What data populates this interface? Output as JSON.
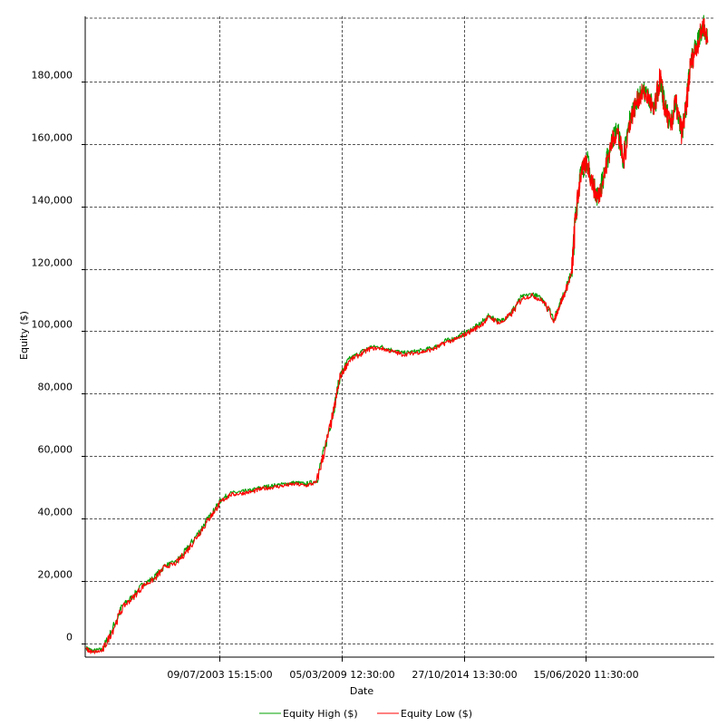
{
  "chart_data": {
    "type": "line",
    "title": "",
    "xlabel": "Date",
    "ylabel": "Equity ($)",
    "x_tick_labels": [
      "09/07/2003 15:15:00",
      "05/03/2009 12:30:00",
      "27/10/2014 13:30:00",
      "15/06/2020 11:30:00"
    ],
    "y_tick_labels": [
      "0",
      "20,000",
      "40,000",
      "60,000",
      "80,000",
      "100,000",
      "120,000",
      "140,000",
      "160,000",
      "180,000"
    ],
    "y_ticks": [
      0,
      20000,
      40000,
      60000,
      80000,
      100000,
      120000,
      140000,
      160000,
      180000
    ],
    "ylim": [
      -4500,
      201000
    ],
    "grid": true,
    "legend_position": "bottom-center",
    "x_unit": "year",
    "xlim": [
      1997.3,
      2026.4
    ],
    "x_ticks": [
      2003.52,
      2009.17,
      2014.82,
      2020.46
    ],
    "series": [
      {
        "name": "Equity High ($)",
        "color": "#00a000",
        "x": [
          1997.35,
          1997.63,
          1998.1,
          1998.53,
          1999.03,
          1999.5,
          2000.0,
          2000.5,
          2001.0,
          2001.5,
          2002.0,
          2002.5,
          2003.0,
          2003.3,
          2003.6,
          2004.0,
          2004.5,
          2005.0,
          2005.5,
          2006.0,
          2006.5,
          2007.0,
          2007.5,
          2008.0,
          2008.4,
          2008.8,
          2009.1,
          2009.5,
          2010.0,
          2010.5,
          2011.0,
          2011.5,
          2012.0,
          2012.5,
          2013.0,
          2013.5,
          2014.0,
          2014.5,
          2015.0,
          2015.5,
          2016.0,
          2016.5,
          2017.0,
          2017.5,
          2018.0,
          2018.5,
          2019.0,
          2019.2,
          2019.5,
          2019.8,
          2020.0,
          2020.2,
          2020.5,
          2020.8,
          2021.0,
          2021.3,
          2021.6,
          2021.9,
          2022.2,
          2022.5,
          2022.8,
          2023.1,
          2023.4,
          2023.6,
          2023.9,
          2024.1,
          2024.4,
          2024.6,
          2024.9,
          2025.1,
          2025.3,
          2025.6,
          2025.9,
          2026.1
        ],
        "values": [
          -1500,
          -2500,
          -2000,
          4000,
          12000,
          15000,
          19000,
          21000,
          25000,
          26000,
          30000,
          35000,
          40000,
          43000,
          46000,
          48000,
          48500,
          49000,
          50000,
          50500,
          51000,
          51500,
          51000,
          52000,
          63000,
          75000,
          86000,
          91000,
          93000,
          95000,
          95000,
          94000,
          93000,
          93500,
          94000,
          95000,
          97000,
          98000,
          100000,
          102000,
          105000,
          103000,
          106000,
          111000,
          112000,
          110000,
          104000,
          108000,
          113000,
          119000,
          138000,
          150000,
          155000,
          147000,
          143000,
          150000,
          160000,
          165000,
          155000,
          168000,
          174000,
          177000,
          175000,
          170000,
          182000,
          172000,
          166000,
          174000,
          164000,
          172000,
          186000,
          192000,
          199000,
          193000
        ]
      },
      {
        "name": "Equity Low ($)",
        "color": "#ff0000",
        "x": [
          1997.35,
          1997.63,
          1998.1,
          1998.53,
          1999.03,
          1999.5,
          2000.0,
          2000.5,
          2001.0,
          2001.5,
          2002.0,
          2002.5,
          2003.0,
          2003.3,
          2003.6,
          2004.0,
          2004.5,
          2005.0,
          2005.5,
          2006.0,
          2006.5,
          2007.0,
          2007.5,
          2008.0,
          2008.4,
          2008.8,
          2009.1,
          2009.5,
          2010.0,
          2010.5,
          2011.0,
          2011.5,
          2012.0,
          2012.5,
          2013.0,
          2013.5,
          2014.0,
          2014.5,
          2015.0,
          2015.5,
          2016.0,
          2016.5,
          2017.0,
          2017.5,
          2018.0,
          2018.5,
          2019.0,
          2019.2,
          2019.5,
          2019.8,
          2020.0,
          2020.2,
          2020.5,
          2020.8,
          2021.0,
          2021.3,
          2021.6,
          2021.9,
          2022.2,
          2022.5,
          2022.8,
          2023.1,
          2023.4,
          2023.6,
          2023.9,
          2024.1,
          2024.4,
          2024.6,
          2024.9,
          2025.1,
          2025.3,
          2025.6,
          2025.9,
          2026.1
        ],
        "values": [
          -2000,
          -3000,
          -2500,
          3500,
          11500,
          14500,
          18500,
          20500,
          24500,
          25500,
          29500,
          34500,
          39500,
          42500,
          45500,
          47500,
          48000,
          48500,
          49500,
          50000,
          50500,
          51000,
          50500,
          51500,
          62500,
          74500,
          85500,
          90500,
          92500,
          94500,
          94500,
          93500,
          92500,
          93000,
          93500,
          94500,
          96500,
          97500,
          99500,
          101500,
          104500,
          102500,
          105500,
          110500,
          111500,
          109500,
          103500,
          107500,
          112500,
          118500,
          137500,
          149500,
          154500,
          146500,
          142500,
          149500,
          159500,
          164500,
          154500,
          167500,
          173500,
          176500,
          174500,
          169500,
          181500,
          171500,
          165500,
          173500,
          163500,
          171500,
          185500,
          191500,
          198500,
          192500
        ]
      }
    ]
  }
}
